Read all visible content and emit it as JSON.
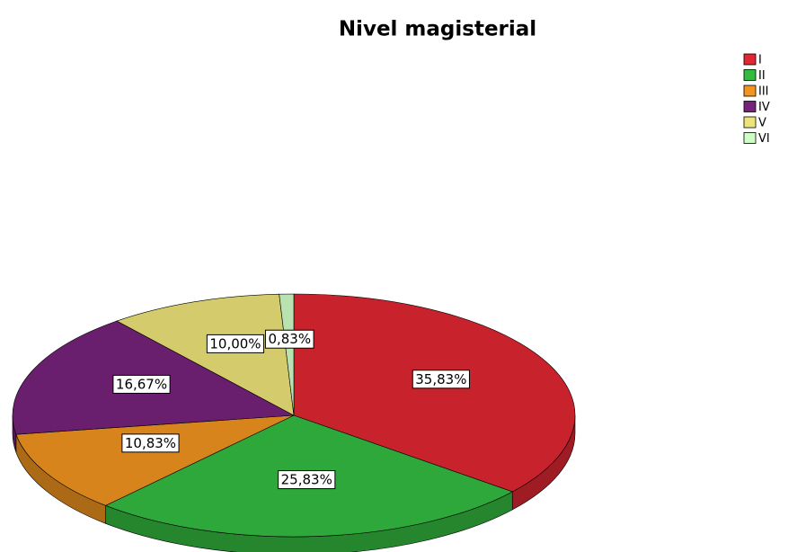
{
  "chart_data": {
    "type": "pie",
    "title": "Nivel magisterial",
    "categories": [
      "I",
      "II",
      "III",
      "IV",
      "V",
      "VI"
    ],
    "values": [
      35.83,
      25.83,
      10.83,
      16.67,
      10.0,
      0.83
    ],
    "value_labels": [
      "35,83%",
      "25,83%",
      "10,83%",
      "16,67%",
      "10,00%",
      "0,83%"
    ],
    "colors": [
      "#c8232d",
      "#2ea83a",
      "#d8841c",
      "#6a1f6e",
      "#d4cc6c",
      "#b8e3b0"
    ],
    "legend": "top-right"
  }
}
